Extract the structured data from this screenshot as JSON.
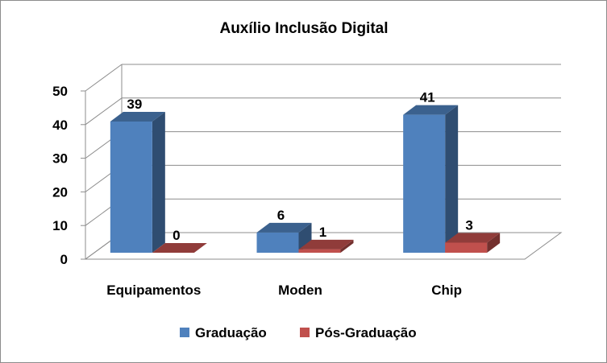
{
  "chart_data": {
    "type": "bar",
    "title": "Auxílio Inclusão Digital",
    "xlabel": "",
    "ylabel": "",
    "categories": [
      "Equipamentos",
      "Moden",
      "Chip"
    ],
    "series": [
      {
        "name": "Graduação",
        "values": [
          39,
          6,
          41
        ],
        "color": "#4f81bd"
      },
      {
        "name": "Pós-Graduação",
        "values": [
          0,
          1,
          3
        ],
        "color": "#c0504d"
      }
    ],
    "ylim": [
      0,
      50
    ],
    "yticks": [
      "0",
      "10",
      "20",
      "30",
      "40",
      "50"
    ],
    "grid": true,
    "style": "3d-clustered-column",
    "legend_position": "bottom",
    "data_labels": true
  }
}
